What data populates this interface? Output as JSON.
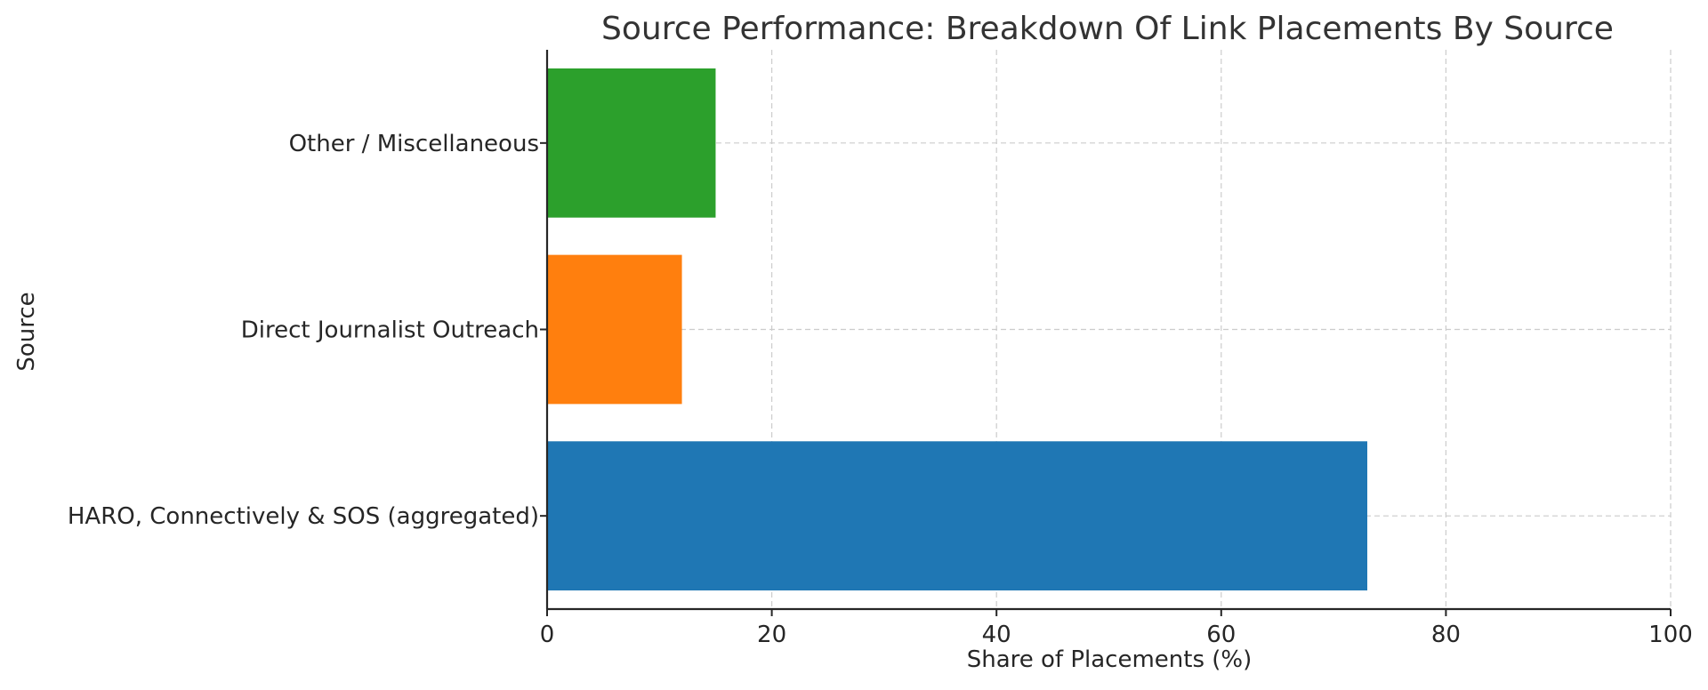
{
  "chart_data": {
    "type": "bar",
    "orientation": "horizontal",
    "title": "Source Performance: Breakdown Of Link Placements By Source",
    "xlabel": "Share of Placements (%)",
    "ylabel": "Source",
    "categories": [
      "HARO, Connectively & SOS (aggregated)",
      "Direct Journalist Outreach",
      "Other / Miscellaneous"
    ],
    "values": [
      73,
      12,
      15
    ],
    "colors": [
      "#1f77b4",
      "#ff7f0e",
      "#2ca02c"
    ],
    "xlim": [
      0,
      100
    ],
    "xticks": [
      0,
      20,
      40,
      60,
      80,
      100
    ],
    "grid": true
  }
}
